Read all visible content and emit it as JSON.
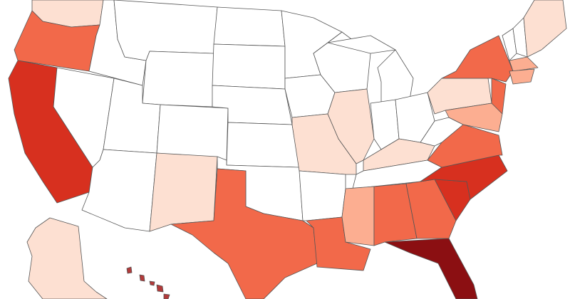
{
  "map": {
    "type": "choropleth",
    "palette": {
      "0": "#ffffff",
      "1": "#fde0d2",
      "2": "#fcae91",
      "3": "#f2694a",
      "4": "#d7301f",
      "5": "#8b0f12"
    },
    "hawaii_color": "#b23a3a",
    "levels": {
      "WA": 1,
      "OR": 3,
      "CA": 4,
      "NV": 0,
      "ID": 0,
      "MT": 0,
      "WY": 0,
      "UT": 0,
      "AZ": 0,
      "CO": 0,
      "NM": 1,
      "ND": 0,
      "SD": 0,
      "NE": 0,
      "KS": 0,
      "OK": 0,
      "TX": 3,
      "MN": 0,
      "IA": 0,
      "MO": 1,
      "AR": 0,
      "LA": 3,
      "WI": 0,
      "IL": 1,
      "MI": 0,
      "MIU": 0,
      "IN": 0,
      "OH": 0,
      "KY": 1,
      "TN": 0,
      "MS": 2,
      "AL": 3,
      "GA": 3,
      "FL": 5,
      "SC": 4,
      "NC": 4,
      "VA": 3,
      "WV": 0,
      "PA": 1,
      "NY": 3,
      "NJ": 3,
      "MD": 2,
      "VT": 0,
      "NH": 0,
      "ME": 1,
      "MA": 2,
      "CT": 2,
      "AK": 1
    }
  }
}
